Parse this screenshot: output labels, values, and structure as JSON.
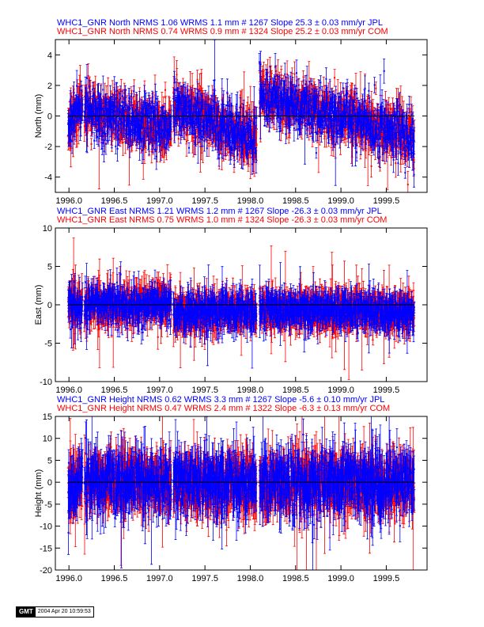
{
  "chart_data": [
    {
      "type": "scatter",
      "title_lines": [
        {
          "text": "WHC1_GNR North NRMS 1.06 WRMS  1.1 mm # 1267 Slope   25.3 ±  0.03 mm/yr JPL",
          "color": "#0000ff"
        },
        {
          "text": "WHC1_GNR North NRMS 0.74 WRMS  0.9 mm # 1324 Slope   25.2 ±  0.03 mm/yr COM",
          "color": "#ff0000"
        }
      ],
      "ylabel": "North (mm)",
      "xlim": [
        1995.85,
        1999.95
      ],
      "ylim": [
        -5,
        5
      ],
      "yticks": [
        -4,
        -2,
        0,
        2,
        4
      ],
      "xticks": [
        "1996.0",
        "1996.5",
        "1997.0",
        "1997.5",
        "1998.0",
        "1998.5",
        "1999.0",
        "1999.5"
      ],
      "series": [
        {
          "name": "JPL",
          "color": "#0000ff",
          "count": 1267,
          "sigma": 0.85,
          "err": 0.6
        },
        {
          "name": "COM",
          "color": "#ff0000",
          "count": 1324,
          "sigma": 0.8,
          "err": 0.7
        }
      ],
      "segments": [
        {
          "x": [
            1995.99,
            1996.15
          ],
          "y": [
            -0.4,
            0.6
          ]
        },
        {
          "x": [
            1996.17,
            1997.13
          ],
          "y": [
            0.3,
            -0.9
          ]
        },
        {
          "x": [
            1997.15,
            1998.07
          ],
          "y": [
            0.6,
            -1.5
          ]
        },
        {
          "x": [
            1998.1,
            1999.81
          ],
          "y": [
            1.4,
            -1.4
          ]
        }
      ]
    },
    {
      "type": "scatter",
      "title_lines": [
        {
          "text": "WHC1_GNR East NRMS 1.21 WRMS  1.2 mm # 1267 Slope  -26.3 ±  0.03 mm/yr JPL",
          "color": "#0000ff"
        },
        {
          "text": "WHC1_GNR East NRMS 0.75 WRMS  1.0 mm # 1324 Slope  -26.3 ±  0.03 mm/yr COM",
          "color": "#ff0000"
        }
      ],
      "ylabel": "East (mm)",
      "xlim": [
        1995.85,
        1999.95
      ],
      "ylim": [
        -10,
        10
      ],
      "yticks": [
        -10,
        -5,
        0,
        5,
        10
      ],
      "xticks": [
        "1996.0",
        "1996.5",
        "1997.0",
        "1997.5",
        "1998.0",
        "1998.5",
        "1999.0",
        "1999.5"
      ],
      "series": [
        {
          "name": "JPL",
          "color": "#0000ff",
          "count": 1267,
          "sigma": 1.1,
          "err": 1.3
        },
        {
          "name": "COM",
          "color": "#ff0000",
          "count": 1324,
          "sigma": 1.0,
          "err": 1.6
        }
      ],
      "segments": [
        {
          "x": [
            1995.99,
            1996.15
          ],
          "y": [
            0.2,
            -0.3
          ]
        },
        {
          "x": [
            1996.17,
            1997.13
          ],
          "y": [
            -0.3,
            0.2
          ]
        },
        {
          "x": [
            1997.15,
            1998.07
          ],
          "y": [
            -1.0,
            -0.8
          ]
        },
        {
          "x": [
            1998.1,
            1999.81
          ],
          "y": [
            -0.5,
            -0.9
          ]
        }
      ]
    },
    {
      "type": "scatter",
      "title_lines": [
        {
          "text": "WHC1_GNR Height NRMS 0.62 WRMS  3.3 mm # 1267 Slope   -5.6 ±  0.10 mm/yr JPL",
          "color": "#0000ff"
        },
        {
          "text": "WHC1_GNR Height NRMS 0.47 WRMS  2.4 mm # 1322 Slope   -6.3 ±  0.13 mm/yr COM",
          "color": "#ff0000"
        }
      ],
      "ylabel": "Height (mm)",
      "xlim": [
        1995.85,
        1999.95
      ],
      "ylim": [
        -20,
        15
      ],
      "yticks": [
        -20,
        -15,
        -10,
        -5,
        0,
        5,
        10,
        15
      ],
      "xticks": [
        "1996.0",
        "1996.5",
        "1997.0",
        "1997.5",
        "1998.0",
        "1998.5",
        "1999.0",
        "1999.5"
      ],
      "series": [
        {
          "name": "JPL",
          "color": "#0000ff",
          "count": 1267,
          "sigma": 3.3,
          "err": 3.5
        },
        {
          "name": "COM",
          "color": "#ff0000",
          "count": 1322,
          "sigma": 2.6,
          "err": 4.0
        }
      ],
      "segments": [
        {
          "x": [
            1995.99,
            1996.15
          ],
          "y": [
            0,
            0
          ]
        },
        {
          "x": [
            1996.17,
            1997.13
          ],
          "y": [
            0,
            0
          ]
        },
        {
          "x": [
            1997.15,
            1998.07
          ],
          "y": [
            0,
            0
          ]
        },
        {
          "x": [
            1998.1,
            1999.81
          ],
          "y": [
            0,
            0
          ]
        }
      ]
    }
  ],
  "footer": {
    "logo": "GMT",
    "timestamp": "2004 Apr 20 10:59:53"
  }
}
